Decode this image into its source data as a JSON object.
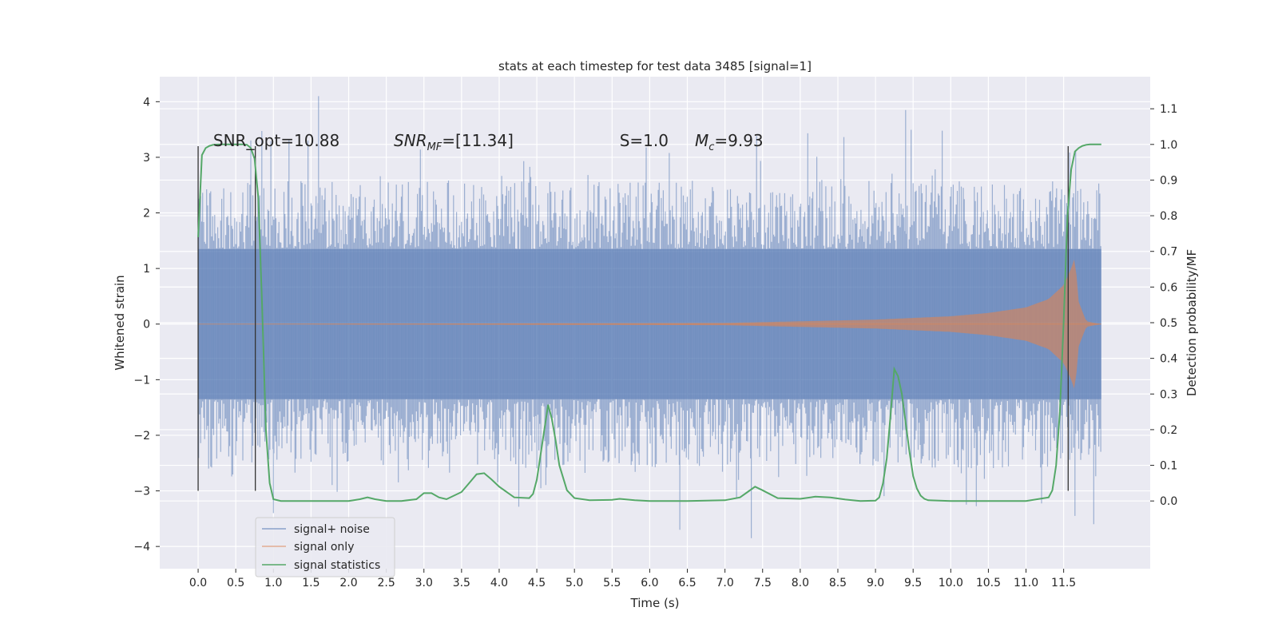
{
  "chart_data": {
    "type": "line",
    "title": "stats at each timestep for test data 3485 [signal=1]",
    "xlabel": "Time (s)",
    "ylabel": "Whitened strain",
    "y2label": "Detection probability/MF",
    "xlim": [
      -0.51,
      12.65
    ],
    "ylim": [
      -4.4,
      4.45
    ],
    "y2lim": [
      -0.19,
      1.19
    ],
    "x_ticks": [
      "0.0",
      "0.5",
      "1.0",
      "1.5",
      "2.0",
      "2.5",
      "3.0",
      "3.5",
      "4.0",
      "4.5",
      "5.0",
      "5.5",
      "6.0",
      "6.5",
      "7.0",
      "7.5",
      "8.0",
      "8.5",
      "9.0",
      "9.5",
      "10.0",
      "10.5",
      "11.0",
      "11.5"
    ],
    "y_ticks": [
      "4",
      "3",
      "2",
      "1",
      "0",
      "−1",
      "−2",
      "−3",
      "−4"
    ],
    "y2_ticks": [
      "1.1",
      "1.0",
      "0.9",
      "0.8",
      "0.7",
      "0.6",
      "0.5",
      "0.4",
      "0.3",
      "0.2",
      "0.1",
      "0.0"
    ],
    "grid": true,
    "legend_position": "lower-left",
    "annotations": [
      {
        "text": "SNR_opt=10.88",
        "x": 0.2,
        "y": 3.2
      },
      {
        "text": "SNR_MF=[11.34]",
        "x": 2.6,
        "y": 3.2
      },
      {
        "text": "S=1.0",
        "x": 5.6,
        "y": 3.2
      },
      {
        "text": "M_c=9.93",
        "x": 6.6,
        "y": 3.2
      }
    ],
    "vertical_lines": [
      {
        "x": 0.0,
        "y_range": [
          -3.0,
          3.2
        ]
      },
      {
        "x": 0.76,
        "y_range": [
          -3.0,
          3.2
        ]
      },
      {
        "x": 11.56,
        "y_range": [
          -3.0,
          3.2
        ]
      }
    ],
    "series": [
      {
        "name": "signal+ noise",
        "color": "#4c72b0",
        "axis": "left",
        "kind": "noise",
        "x_range": [
          0.0,
          12.0
        ],
        "envelope": [
          [
            0.0,
            1.35
          ],
          [
            11.2,
            1.35
          ],
          [
            12.0,
            1.35
          ]
        ],
        "typical_peak": 2.6,
        "max": 4.1,
        "min": -3.85
      },
      {
        "name": "signal only",
        "color": "#dd8452",
        "axis": "left",
        "kind": "chirp",
        "x_range": [
          0.0,
          12.0
        ],
        "envelope": [
          [
            0.0,
            0.0
          ],
          [
            7.0,
            0.02
          ],
          [
            9.0,
            0.08
          ],
          [
            10.0,
            0.14
          ],
          [
            10.5,
            0.2
          ],
          [
            11.0,
            0.3
          ],
          [
            11.3,
            0.45
          ],
          [
            11.5,
            0.7
          ],
          [
            11.6,
            1.0
          ],
          [
            11.65,
            1.2
          ],
          [
            11.7,
            0.4
          ],
          [
            11.8,
            0.05
          ],
          [
            12.0,
            0.0
          ]
        ]
      },
      {
        "name": "signal statistics",
        "color": "#55a868",
        "axis": "right",
        "kind": "line",
        "x": [
          0.0,
          0.05,
          0.1,
          0.15,
          0.2,
          0.3,
          0.4,
          0.5,
          0.6,
          0.65,
          0.7,
          0.75,
          0.8,
          0.85,
          0.9,
          0.95,
          1.0,
          1.1,
          1.5,
          2.0,
          2.15,
          2.25,
          2.35,
          2.5,
          2.7,
          2.9,
          3.0,
          3.1,
          3.2,
          3.3,
          3.5,
          3.6,
          3.7,
          3.8,
          3.9,
          4.0,
          4.2,
          4.4,
          4.45,
          4.5,
          4.55,
          4.6,
          4.65,
          4.7,
          4.75,
          4.8,
          4.9,
          5.0,
          5.2,
          5.5,
          5.6,
          5.8,
          6.0,
          6.5,
          7.0,
          7.2,
          7.3,
          7.4,
          7.5,
          7.7,
          8.0,
          8.2,
          8.4,
          8.6,
          8.8,
          9.0,
          9.05,
          9.1,
          9.15,
          9.2,
          9.25,
          9.3,
          9.35,
          9.4,
          9.45,
          9.5,
          9.55,
          9.6,
          9.65,
          9.7,
          10.0,
          11.0,
          11.3,
          11.35,
          11.4,
          11.45,
          11.5,
          11.55,
          11.6,
          11.65,
          11.7,
          11.75,
          11.8,
          11.85,
          11.9,
          12.0
        ],
        "y": [
          0.74,
          0.97,
          0.99,
          0.996,
          0.999,
          1.0,
          1.0,
          1.0,
          1.0,
          0.999,
          0.99,
          0.96,
          0.85,
          0.55,
          0.2,
          0.05,
          0.005,
          0.0,
          0.0,
          0.0,
          0.005,
          0.01,
          0.005,
          0.0,
          0.0,
          0.005,
          0.022,
          0.022,
          0.01,
          0.005,
          0.025,
          0.05,
          0.075,
          0.078,
          0.06,
          0.04,
          0.01,
          0.008,
          0.02,
          0.06,
          0.13,
          0.2,
          0.27,
          0.23,
          0.17,
          0.1,
          0.03,
          0.008,
          0.002,
          0.003,
          0.006,
          0.002,
          0.0,
          0.0,
          0.002,
          0.01,
          0.025,
          0.04,
          0.03,
          0.008,
          0.006,
          0.012,
          0.01,
          0.004,
          0.0,
          0.001,
          0.01,
          0.05,
          0.12,
          0.24,
          0.37,
          0.35,
          0.3,
          0.22,
          0.14,
          0.07,
          0.035,
          0.015,
          0.006,
          0.002,
          0.0,
          0.0,
          0.01,
          0.03,
          0.1,
          0.25,
          0.5,
          0.8,
          0.93,
          0.98,
          0.99,
          0.996,
          0.999,
          1.0,
          1.0,
          1.0
        ]
      }
    ]
  }
}
